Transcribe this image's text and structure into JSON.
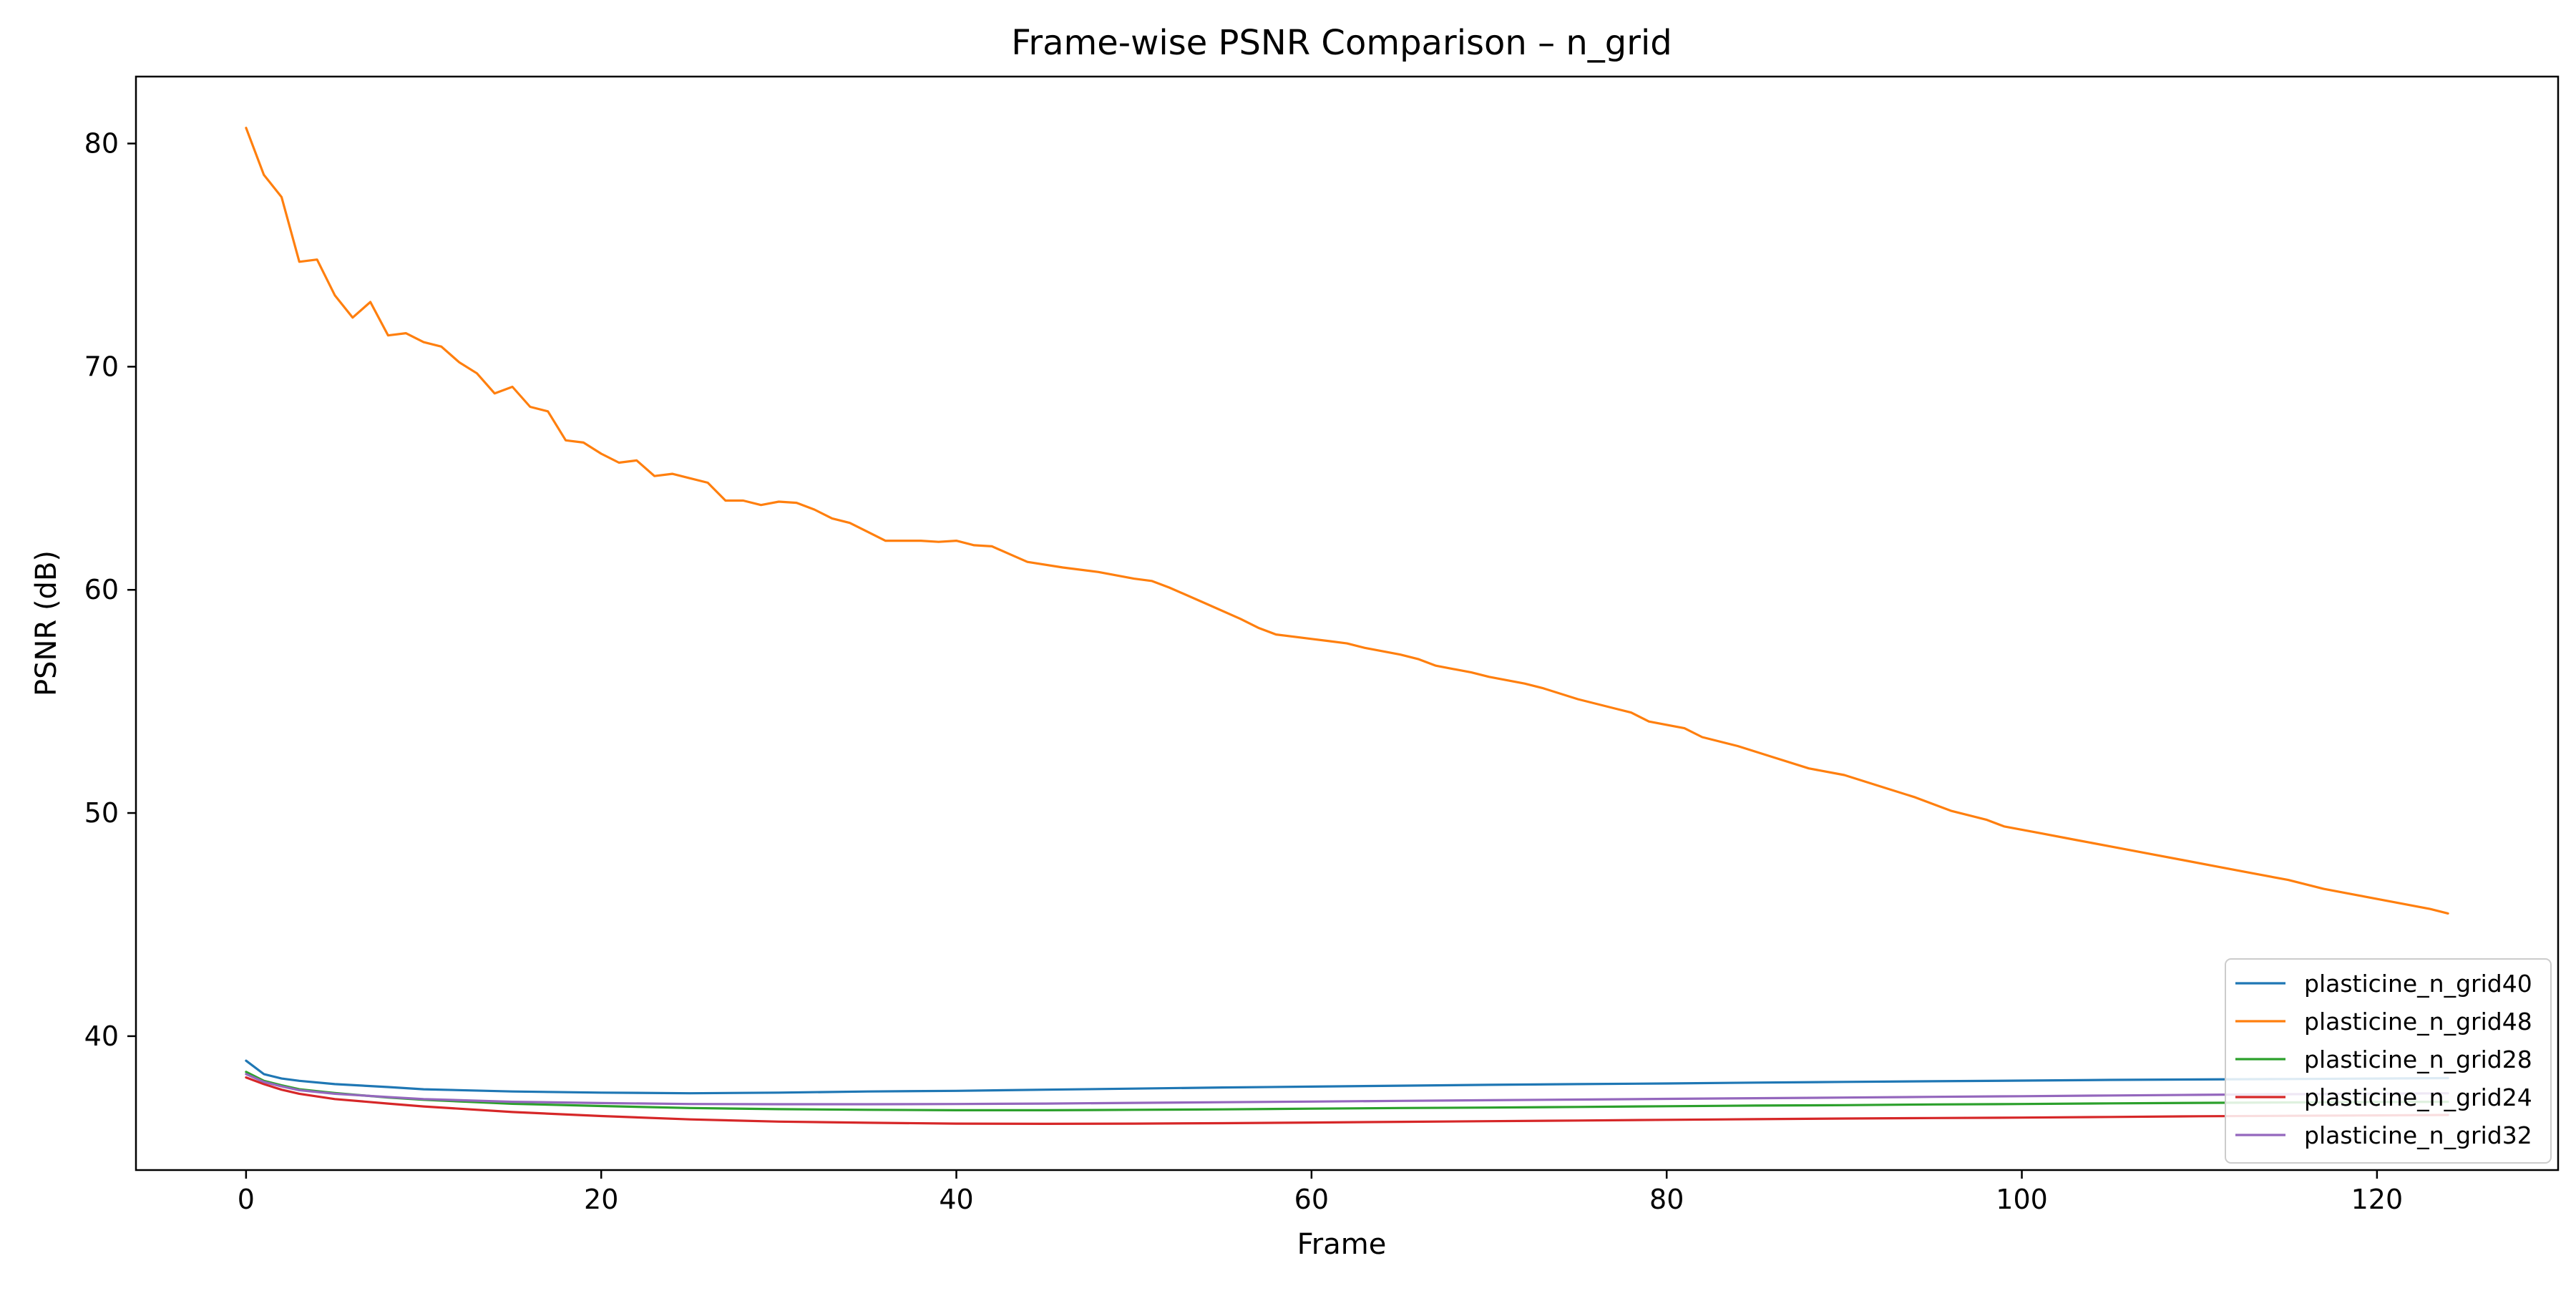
{
  "chart_data": {
    "type": "line",
    "title": "Frame-wise PSNR Comparison – n_grid",
    "xlabel": "Frame",
    "ylabel": "PSNR (dB)",
    "xlim": [
      -6.2,
      130.2
    ],
    "ylim": [
      34.0,
      83.0
    ],
    "xticks": [
      0,
      20,
      40,
      60,
      80,
      100,
      120
    ],
    "yticks": [
      40,
      50,
      60,
      70,
      80
    ],
    "grid": false,
    "legend_position": "lower-right",
    "series": [
      {
        "name": "plasticine_n_grid40",
        "color": "#1f77b4",
        "points": [
          [
            0,
            38.9
          ],
          [
            1,
            38.3
          ],
          [
            2,
            38.1
          ],
          [
            3,
            38.0
          ],
          [
            5,
            37.85
          ],
          [
            8,
            37.72
          ],
          [
            10,
            37.62
          ],
          [
            15,
            37.52
          ],
          [
            20,
            37.47
          ],
          [
            25,
            37.44
          ],
          [
            30,
            37.47
          ],
          [
            35,
            37.52
          ],
          [
            40,
            37.55
          ],
          [
            45,
            37.6
          ],
          [
            50,
            37.65
          ],
          [
            55,
            37.7
          ],
          [
            60,
            37.74
          ],
          [
            65,
            37.78
          ],
          [
            70,
            37.82
          ],
          [
            75,
            37.85
          ],
          [
            80,
            37.88
          ],
          [
            85,
            37.92
          ],
          [
            90,
            37.95
          ],
          [
            95,
            37.98
          ],
          [
            100,
            38.01
          ],
          [
            105,
            38.04
          ],
          [
            110,
            38.06
          ],
          [
            115,
            38.08
          ],
          [
            120,
            38.1
          ],
          [
            124,
            38.12
          ]
        ]
      },
      {
        "name": "plasticine_n_grid48",
        "color": "#ff7f0e",
        "points": [
          [
            0,
            80.7
          ],
          [
            1,
            78.6
          ],
          [
            2,
            77.6
          ],
          [
            3,
            74.7
          ],
          [
            4,
            74.8
          ],
          [
            5,
            73.2
          ],
          [
            6,
            72.2
          ],
          [
            7,
            72.9
          ],
          [
            8,
            71.4
          ],
          [
            9,
            71.5
          ],
          [
            10,
            71.1
          ],
          [
            11,
            70.9
          ],
          [
            12,
            70.2
          ],
          [
            13,
            69.7
          ],
          [
            14,
            68.8
          ],
          [
            15,
            69.1
          ],
          [
            16,
            68.2
          ],
          [
            17,
            68.0
          ],
          [
            18,
            66.7
          ],
          [
            19,
            66.6
          ],
          [
            20,
            66.1
          ],
          [
            21,
            65.7
          ],
          [
            22,
            65.8
          ],
          [
            23,
            65.1
          ],
          [
            24,
            65.2
          ],
          [
            25,
            65.0
          ],
          [
            26,
            64.8
          ],
          [
            27,
            64.0
          ],
          [
            28,
            64.0
          ],
          [
            29,
            63.8
          ],
          [
            30,
            63.95
          ],
          [
            31,
            63.9
          ],
          [
            32,
            63.6
          ],
          [
            33,
            63.2
          ],
          [
            34,
            63.0
          ],
          [
            35,
            62.6
          ],
          [
            36,
            62.2
          ],
          [
            38,
            62.2
          ],
          [
            39,
            62.15
          ],
          [
            40,
            62.2
          ],
          [
            41,
            62.0
          ],
          [
            42,
            61.95
          ],
          [
            43,
            61.6
          ],
          [
            44,
            61.25
          ],
          [
            46,
            61.0
          ],
          [
            48,
            60.8
          ],
          [
            50,
            60.5
          ],
          [
            51,
            60.4
          ],
          [
            52,
            60.1
          ],
          [
            54,
            59.4
          ],
          [
            56,
            58.7
          ],
          [
            57,
            58.3
          ],
          [
            58,
            58.0
          ],
          [
            60,
            57.8
          ],
          [
            61,
            57.7
          ],
          [
            62,
            57.6
          ],
          [
            63,
            57.4
          ],
          [
            65,
            57.1
          ],
          [
            66,
            56.9
          ],
          [
            67,
            56.6
          ],
          [
            69,
            56.3
          ],
          [
            70,
            56.1
          ],
          [
            72,
            55.8
          ],
          [
            73,
            55.6
          ],
          [
            75,
            55.1
          ],
          [
            77,
            54.7
          ],
          [
            78,
            54.5
          ],
          [
            79,
            54.1
          ],
          [
            81,
            53.8
          ],
          [
            82,
            53.4
          ],
          [
            84,
            53.0
          ],
          [
            86,
            52.5
          ],
          [
            88,
            52.0
          ],
          [
            90,
            51.7
          ],
          [
            92,
            51.2
          ],
          [
            94,
            50.7
          ],
          [
            96,
            50.1
          ],
          [
            98,
            49.7
          ],
          [
            99,
            49.4
          ],
          [
            101,
            49.1
          ],
          [
            103,
            48.8
          ],
          [
            105,
            48.5
          ],
          [
            107,
            48.2
          ],
          [
            109,
            47.9
          ],
          [
            111,
            47.6
          ],
          [
            113,
            47.3
          ],
          [
            115,
            47.0
          ],
          [
            117,
            46.6
          ],
          [
            119,
            46.3
          ],
          [
            121,
            46.0
          ],
          [
            123,
            45.7
          ],
          [
            124,
            45.5
          ]
        ]
      },
      {
        "name": "plasticine_n_grid28",
        "color": "#2ca02c",
        "points": [
          [
            0,
            38.4
          ],
          [
            1,
            38.0
          ],
          [
            2,
            37.8
          ],
          [
            3,
            37.62
          ],
          [
            5,
            37.45
          ],
          [
            8,
            37.25
          ],
          [
            10,
            37.15
          ],
          [
            15,
            36.97
          ],
          [
            20,
            36.87
          ],
          [
            25,
            36.78
          ],
          [
            30,
            36.73
          ],
          [
            35,
            36.7
          ],
          [
            40,
            36.68
          ],
          [
            45,
            36.68
          ],
          [
            50,
            36.7
          ],
          [
            55,
            36.72
          ],
          [
            60,
            36.75
          ],
          [
            65,
            36.78
          ],
          [
            70,
            36.8
          ],
          [
            75,
            36.83
          ],
          [
            80,
            36.86
          ],
          [
            85,
            36.89
          ],
          [
            90,
            36.91
          ],
          [
            95,
            36.94
          ],
          [
            100,
            36.96
          ],
          [
            105,
            36.99
          ],
          [
            110,
            37.01
          ],
          [
            115,
            37.03
          ],
          [
            120,
            37.05
          ],
          [
            124,
            37.06
          ]
        ]
      },
      {
        "name": "plasticine_n_grid24",
        "color": "#d62728",
        "points": [
          [
            0,
            38.15
          ],
          [
            1,
            37.85
          ],
          [
            2,
            37.6
          ],
          [
            3,
            37.42
          ],
          [
            5,
            37.18
          ],
          [
            8,
            36.98
          ],
          [
            10,
            36.85
          ],
          [
            15,
            36.6
          ],
          [
            20,
            36.42
          ],
          [
            25,
            36.27
          ],
          [
            30,
            36.17
          ],
          [
            35,
            36.12
          ],
          [
            40,
            36.08
          ],
          [
            45,
            36.07
          ],
          [
            50,
            36.08
          ],
          [
            55,
            36.1
          ],
          [
            60,
            36.13
          ],
          [
            65,
            36.16
          ],
          [
            70,
            36.19
          ],
          [
            75,
            36.22
          ],
          [
            80,
            36.25
          ],
          [
            85,
            36.28
          ],
          [
            90,
            36.31
          ],
          [
            95,
            36.33
          ],
          [
            100,
            36.35
          ],
          [
            105,
            36.38
          ],
          [
            110,
            36.41
          ],
          [
            115,
            36.43
          ],
          [
            120,
            36.45
          ],
          [
            124,
            36.47
          ]
        ]
      },
      {
        "name": "plasticine_n_grid32",
        "color": "#9467bd",
        "points": [
          [
            0,
            38.3
          ],
          [
            1,
            37.95
          ],
          [
            2,
            37.75
          ],
          [
            3,
            37.58
          ],
          [
            5,
            37.42
          ],
          [
            8,
            37.27
          ],
          [
            10,
            37.18
          ],
          [
            15,
            37.06
          ],
          [
            20,
            37.0
          ],
          [
            25,
            36.96
          ],
          [
            30,
            36.95
          ],
          [
            35,
            36.95
          ],
          [
            40,
            36.96
          ],
          [
            45,
            36.98
          ],
          [
            50,
            37.01
          ],
          [
            55,
            37.04
          ],
          [
            60,
            37.07
          ],
          [
            65,
            37.1
          ],
          [
            70,
            37.13
          ],
          [
            75,
            37.16
          ],
          [
            80,
            37.19
          ],
          [
            85,
            37.22
          ],
          [
            90,
            37.25
          ],
          [
            95,
            37.28
          ],
          [
            100,
            37.31
          ],
          [
            105,
            37.34
          ],
          [
            110,
            37.37
          ],
          [
            115,
            37.4
          ],
          [
            120,
            37.42
          ],
          [
            124,
            37.44
          ]
        ]
      }
    ]
  }
}
